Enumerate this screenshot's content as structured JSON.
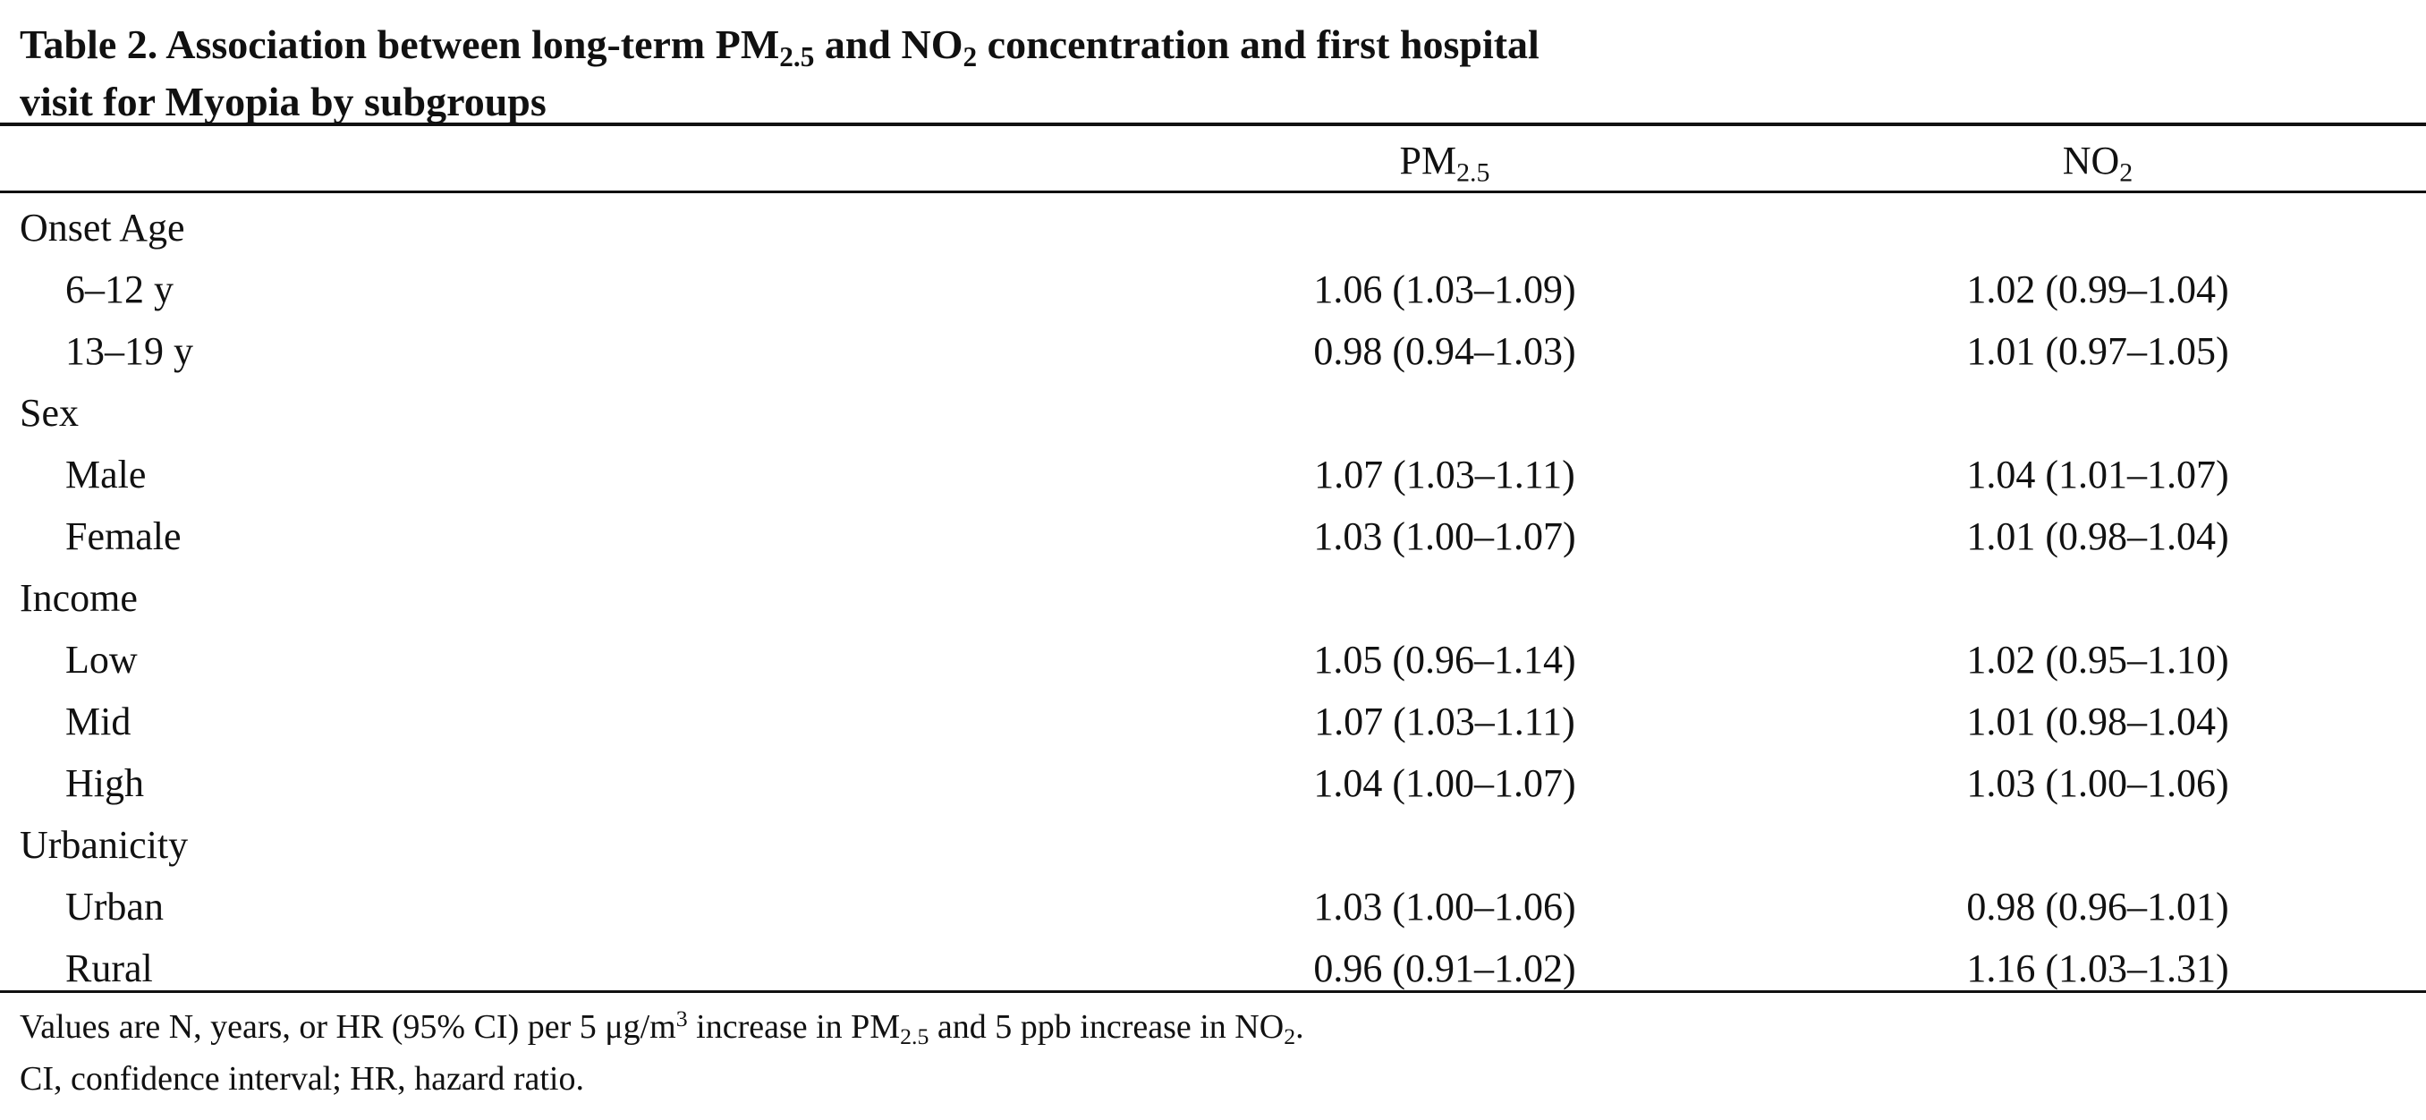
{
  "title": {
    "label": "Table 2.",
    "part1": "Association between long-term PM",
    "pm_sub": "2.5",
    "part2": " and NO",
    "no_sub": "2",
    "part3": " concentration and first hospital",
    "line2": "visit for Myopia by subgroups"
  },
  "columns": {
    "pm_main": "PM",
    "pm_sub": "2.5",
    "no_main": "NO",
    "no_sub": "2"
  },
  "rows": [
    {
      "label": "Onset Age",
      "pm": "",
      "no": "",
      "group": true
    },
    {
      "label": "6–12 y",
      "pm": "1.06 (1.03–1.09)",
      "no": "1.02 (0.99–1.04)"
    },
    {
      "label": "13–19 y",
      "pm": "0.98 (0.94–1.03)",
      "no": "1.01 (0.97–1.05)"
    },
    {
      "label": "Sex",
      "pm": "",
      "no": "",
      "group": true
    },
    {
      "label": "Male",
      "pm": "1.07 (1.03–1.11)",
      "no": "1.04 (1.01–1.07)"
    },
    {
      "label": "Female",
      "pm": "1.03 (1.00–1.07)",
      "no": "1.01 (0.98–1.04)"
    },
    {
      "label": "Income",
      "pm": "",
      "no": "",
      "group": true
    },
    {
      "label": "Low",
      "pm": "1.05 (0.96–1.14)",
      "no": "1.02 (0.95–1.10)"
    },
    {
      "label": "Mid",
      "pm": "1.07 (1.03–1.11)",
      "no": "1.01 (0.98–1.04)"
    },
    {
      "label": "High",
      "pm": "1.04 (1.00–1.07)",
      "no": "1.03 (1.00–1.06)"
    },
    {
      "label": "Urbanicity",
      "pm": "",
      "no": "",
      "group": true
    },
    {
      "label": "Urban",
      "pm": "1.03 (1.00–1.06)",
      "no": "0.98 (0.96–1.01)"
    },
    {
      "label": "Rural",
      "pm": "0.96 (0.91–1.02)",
      "no": "1.16 (1.03–1.31)"
    }
  ],
  "footnotes": {
    "note1_a": "Values are N, years, or HR (95% CI) per 5 μg/m",
    "note1_sup": "3",
    "note1_b": " increase in PM",
    "note1_sub1": "2.5",
    "note1_c": " and 5 ppb increase in NO",
    "note1_sub2": "2",
    "note1_d": ".",
    "note2": "CI, confidence interval; HR, hazard ratio."
  }
}
